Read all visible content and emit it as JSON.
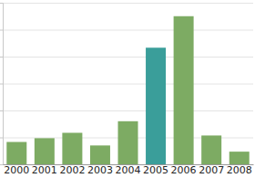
{
  "chart_data": {
    "type": "bar",
    "categories": [
      "2000",
      "2001",
      "2002",
      "2003",
      "2004",
      "2005",
      "2006",
      "2007",
      "2008"
    ],
    "values": [
      0.83,
      0.97,
      1.17,
      0.7,
      1.6,
      4.33,
      5.5,
      1.07,
      0.47
    ],
    "colors": [
      "#7dab63",
      "#7dab63",
      "#7dab63",
      "#7dab63",
      "#7dab63",
      "#3a9e9a",
      "#7dab63",
      "#7dab63",
      "#7dab63"
    ],
    "ylim": [
      0,
      6
    ],
    "yticks": [
      0,
      1,
      2,
      3,
      4,
      5,
      6
    ],
    "grid": true,
    "tick_labels": "x"
  }
}
